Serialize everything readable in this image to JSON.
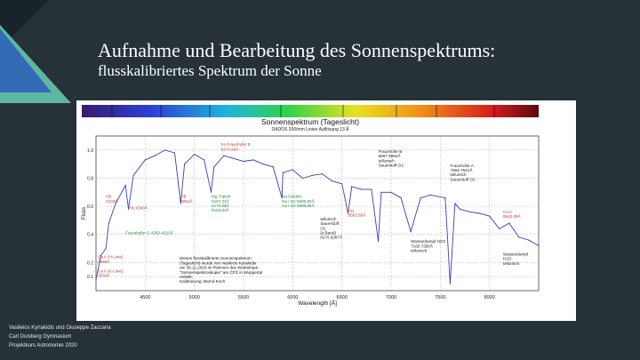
{
  "slide": {
    "title": "Aufnahme und Bearbeitung des Sonnenspektrums:",
    "subtitle": "flusskalibriertes Spektrum der Sonne",
    "credits": [
      "Vasileios Kyriakidis und Giuseppe Zaccaria",
      "Carl Duisberg Gymnasium",
      "Projektkurs Astronomie 2020"
    ],
    "colors": {
      "background": "#263238",
      "accent_green": "#5fb7a1",
      "accent_blue": "#2f63b8"
    }
  },
  "chart_data": {
    "type": "line",
    "title": "Sonnenspektrum (Tageslicht)",
    "subtitle": "DADOS 200/mm Linien Auflösung 13 Å",
    "xlabel": "Wavelength [Å]",
    "ylabel": "Fluss",
    "xlim": [
      4000,
      8500
    ],
    "ylim": [
      0,
      1.1
    ],
    "x_ticks": [
      "4500",
      "5000",
      "5500",
      "6000",
      "6500",
      "7000",
      "7500",
      "8000"
    ],
    "y_ticks": [
      "0.1",
      "0.2",
      "0.4",
      "0.6",
      "0.8",
      "1.0"
    ],
    "series": [
      {
        "color": "#3a3fb0",
        "x": [
          4000,
          4050,
          4100,
          4130,
          4200,
          4300,
          4330,
          4380,
          4500,
          4600,
          4700,
          4800,
          4861,
          4900,
          5000,
          5100,
          5170,
          5200,
          5300,
          5400,
          5500,
          5600,
          5700,
          5800,
          5890,
          5900,
          6000,
          6100,
          6200,
          6300,
          6400,
          6500,
          6563,
          6600,
          6700,
          6800,
          6870,
          6900,
          7000,
          7100,
          7200,
          7300,
          7400,
          7550,
          7600,
          7650,
          7700,
          7800,
          7900,
          8000,
          8100,
          8200,
          8300,
          8400,
          8500
        ],
        "y": [
          0.08,
          0.25,
          0.3,
          0.48,
          0.62,
          0.75,
          0.58,
          0.82,
          0.93,
          0.96,
          1.0,
          0.98,
          0.62,
          0.9,
          0.97,
          0.93,
          0.7,
          0.88,
          0.96,
          0.94,
          0.92,
          0.93,
          0.9,
          0.88,
          0.66,
          0.84,
          0.86,
          0.8,
          0.82,
          0.83,
          0.78,
          0.76,
          0.55,
          0.74,
          0.72,
          0.72,
          0.35,
          0.7,
          0.7,
          0.66,
          0.42,
          0.66,
          0.68,
          0.66,
          0.05,
          0.62,
          0.58,
          0.56,
          0.55,
          0.53,
          0.44,
          0.48,
          0.38,
          0.36,
          0.32
        ]
      }
    ],
    "annotations": [
      {
        "text": "Fe Fraunhofer E\n5270,39Å",
        "color": "#c0392b",
        "x": 5270,
        "y": 1.03
      },
      {
        "text": "Hδ\n4100Å",
        "color": "#c0392b",
        "x": 4100,
        "y": 0.66
      },
      {
        "text": "Hγ 4340Å",
        "color": "#c0392b",
        "x": 4340,
        "y": 0.58
      },
      {
        "text": "Hβ\n4861Å",
        "color": "#c0392b",
        "x": 4861,
        "y": 0.66
      },
      {
        "text": "Fraunhofer G 4300-4310Å",
        "color": "#2a8a3a",
        "x": 4300,
        "y": 0.4
      },
      {
        "text": "Mg Triplett\n5167,32Å\n5172,68Å\n5183,60Å",
        "color": "#2a8a3a",
        "x": 5175,
        "y": 0.66
      },
      {
        "text": "Na Dublett\nNa I D1 5895,92Å\nNa I D2 5889,95Å",
        "color": "#2a8a3a",
        "x": 5890,
        "y": 0.66
      },
      {
        "text": "Ca II (H-Linie)\n3968Å",
        "color": "#c0392b",
        "x": 3968,
        "y": 0.23
      },
      {
        "text": "Ca II (K-Linie)\n3934Å",
        "color": "#c0392b",
        "x": 3934,
        "y": 0.13
      },
      {
        "text": "Hα\n6562,85Å",
        "color": "#c0392b",
        "x": 6563,
        "y": 0.56
      },
      {
        "text": "tellurisch\nSauerstoff\nO2\n(a Band)\n6276 6287Å",
        "color": "#222222",
        "x": 6280,
        "y": 0.5
      },
      {
        "text": "Fraunhofer B\n6867 6884Å\ntellurisch\nSauerstoff O2",
        "color": "#222222",
        "x": 6870,
        "y": 0.98
      },
      {
        "text": "Fraunhofer A\n7594-7621Å\ntellurisch\nSauerstoff O2",
        "color": "#222222",
        "x": 7600,
        "y": 0.88
      },
      {
        "text": "Wasserdampf H2O\n7160 7350Å\ntellurisch",
        "color": "#222222",
        "x": 7200,
        "y": 0.34
      },
      {
        "text": "Wasserdampf\nH2O\ntellurisch",
        "color": "#222222",
        "x": 8150,
        "y": 0.25
      },
      {
        "text": "Ca II\n8542,09Å",
        "color": "#c0392b",
        "x": 8542,
        "y": 0.55
      },
      {
        "text": "Dieses flusskalibrierte Sonnenspektrum\n(Tageslicht) wurde von Vasileios Kyriakidis\nam 30.11.2019 im Rahmen des Workshops\n\"Sonnenspektroskopie\" am CFG in Wuppertal\nerstellt.\nKalibrierung: Bernd Koch",
        "color": "#111111",
        "x": 4850,
        "y": 0.22
      }
    ]
  }
}
